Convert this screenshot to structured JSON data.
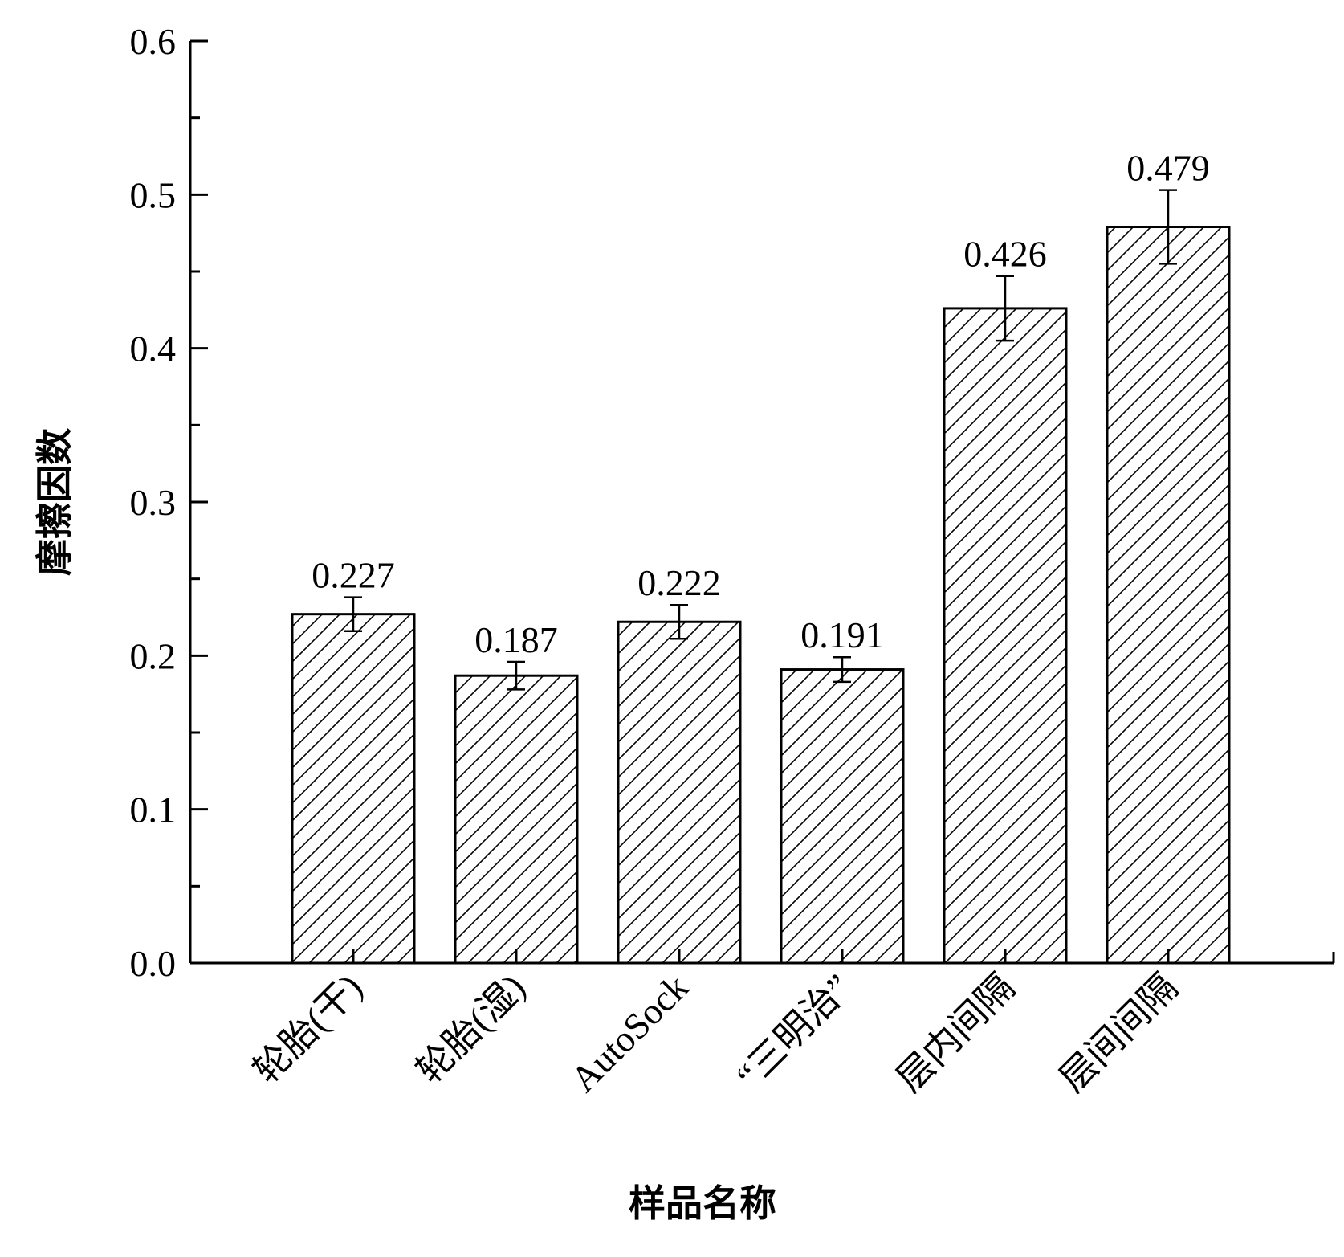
{
  "chart_data": {
    "type": "bar",
    "title": "",
    "xlabel": "样品名称",
    "ylabel": "摩擦因数",
    "ylim": [
      0,
      0.6
    ],
    "yticks": [
      "0.0",
      "0.1",
      "0.2",
      "0.3",
      "0.4",
      "0.5",
      "0.6"
    ],
    "categories": [
      "轮胎(干)",
      "轮胎(湿)",
      "AutoSock",
      "“三明治”",
      "层内间隔",
      "层间间隔"
    ],
    "values": [
      0.227,
      0.187,
      0.222,
      0.191,
      0.426,
      0.479
    ],
    "value_labels": [
      "0.227",
      "0.187",
      "0.222",
      "0.191",
      "0.426",
      "0.479"
    ],
    "error": [
      0.011,
      0.009,
      0.011,
      0.008,
      0.021,
      0.024
    ],
    "fill_pattern": "diagonal-hatch",
    "bar_color": "#000000",
    "background": "#ffffff",
    "grid": false,
    "legend": "none"
  }
}
